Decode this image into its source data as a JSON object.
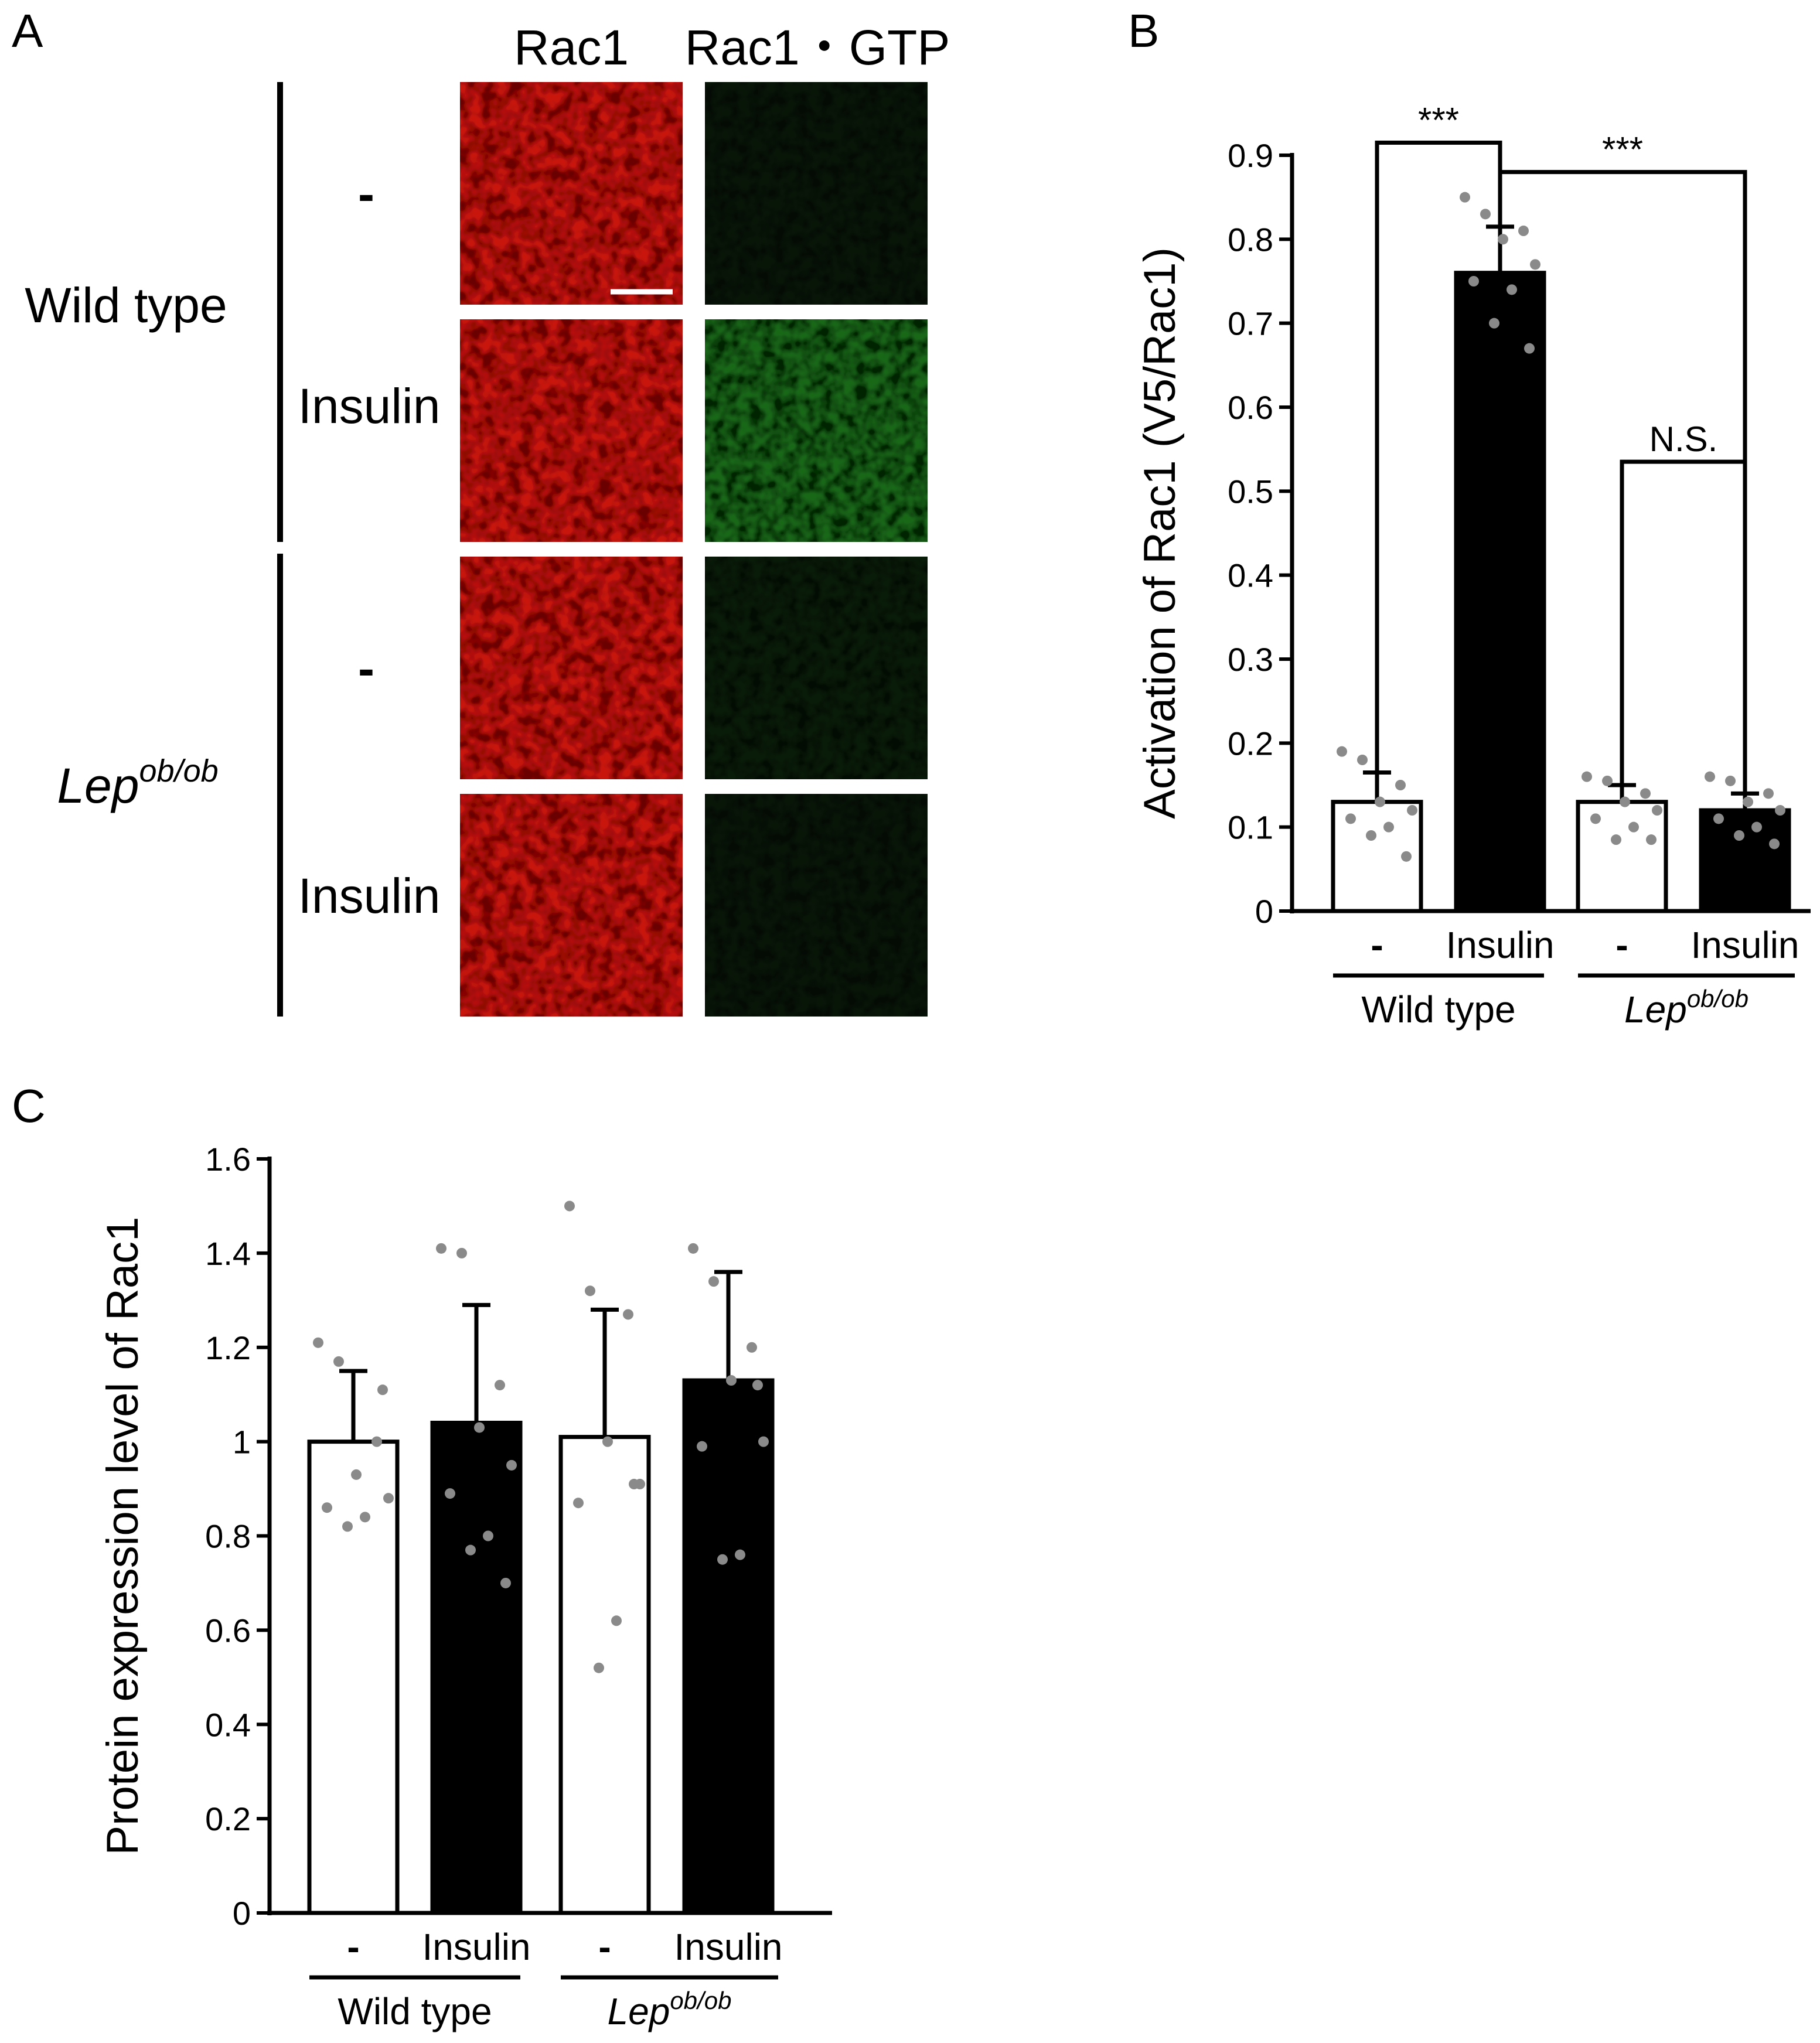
{
  "panel_labels": {
    "a": "A",
    "b": "B",
    "c": "C"
  },
  "panel_a": {
    "col_headers": [
      "Rac1",
      "Rac1・GTP"
    ],
    "groups": [
      {
        "name": "Wild type",
        "italic": false,
        "sup": ""
      },
      {
        "name": "Lep",
        "italic": true,
        "sup": "ob/ob"
      }
    ],
    "conditions": [
      "-",
      "Insulin",
      "-",
      "Insulin"
    ],
    "image_colors": {
      "rac1": "#c8150e",
      "rac1_gtp": "#1f7a1f"
    },
    "gtp_intensity": [
      0.15,
      0.85,
      0.2,
      0.15
    ]
  },
  "chart_data": [
    {
      "type": "bar",
      "panel": "B",
      "ylabel": "Activation of Rac1 (V5/Rac1)",
      "ylim": [
        0,
        0.9
      ],
      "yticks": [
        "0",
        "0.1",
        "0.2",
        "0.3",
        "0.4",
        "0.5",
        "0.6",
        "0.7",
        "0.8",
        "0.9"
      ],
      "categories": [
        "-",
        "Insulin",
        "-",
        "Insulin"
      ],
      "groups": [
        "Wild type",
        "Lep"
      ],
      "group_sup": [
        "",
        "ob/ob"
      ],
      "values": [
        0.13,
        0.76,
        0.13,
        0.12
      ],
      "errors": [
        0.035,
        0.055,
        0.02,
        0.02
      ],
      "fills": [
        "#ffffff",
        "#000000",
        "#ffffff",
        "#000000"
      ],
      "points": [
        [
          0.19,
          0.18,
          0.15,
          0.13,
          0.12,
          0.11,
          0.1,
          0.09,
          0.065
        ],
        [
          0.85,
          0.83,
          0.81,
          0.8,
          0.77,
          0.75,
          0.74,
          0.7,
          0.67
        ],
        [
          0.16,
          0.155,
          0.14,
          0.13,
          0.12,
          0.11,
          0.1,
          0.085,
          0.085
        ],
        [
          0.16,
          0.155,
          0.14,
          0.13,
          0.12,
          0.11,
          0.1,
          0.09,
          0.08
        ]
      ],
      "significance": [
        {
          "bars": [
            0,
            1
          ],
          "label": "***",
          "y": 0.915
        },
        {
          "bars": [
            1,
            3
          ],
          "label": "***",
          "y": 0.88
        },
        {
          "bars": [
            2,
            3
          ],
          "label": "N.S.",
          "y": 0.535
        }
      ]
    },
    {
      "type": "bar",
      "panel": "C",
      "ylabel": "Protein expression level of Rac1",
      "ylim": [
        0,
        1.6
      ],
      "yticks": [
        "0",
        "0.2",
        "0.4",
        "0.6",
        "0.8",
        "1",
        "1.2",
        "1.4",
        "1.6"
      ],
      "categories": [
        "-",
        "Insulin",
        "-",
        "Insulin"
      ],
      "groups": [
        "Wild type",
        "Lep"
      ],
      "group_sup": [
        "",
        "ob/ob"
      ],
      "values": [
        1.0,
        1.04,
        1.01,
        1.13
      ],
      "errors": [
        0.15,
        0.25,
        0.27,
        0.23
      ],
      "fills": [
        "#ffffff",
        "#000000",
        "#ffffff",
        "#000000"
      ],
      "points": [
        [
          1.21,
          1.17,
          1.0,
          0.93,
          0.88,
          0.86,
          0.84,
          0.82,
          1.11
        ],
        [
          1.41,
          1.4,
          1.12,
          1.03,
          0.95,
          0.89,
          0.8,
          0.77,
          0.7
        ],
        [
          1.5,
          1.32,
          1.27,
          1.0,
          0.91,
          0.87,
          0.62,
          0.52,
          0.91
        ],
        [
          1.41,
          1.34,
          1.2,
          1.13,
          1.0,
          0.99,
          0.76,
          0.75,
          1.12
        ]
      ],
      "significance": []
    }
  ]
}
